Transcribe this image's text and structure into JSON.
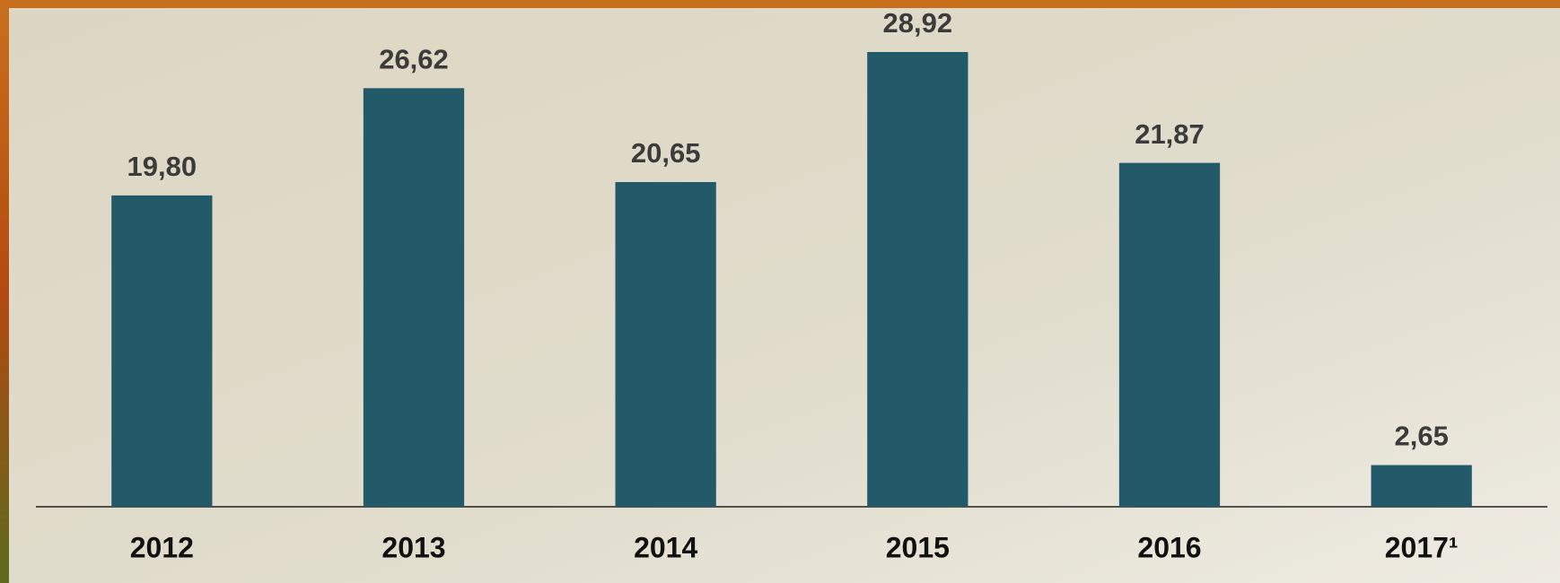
{
  "chart_data": {
    "type": "bar",
    "categories": [
      "2012",
      "2013",
      "2014",
      "2015",
      "2016",
      "2017¹"
    ],
    "values": [
      19.8,
      26.62,
      20.65,
      28.92,
      21.87,
      2.65
    ],
    "value_labels": [
      "19,80",
      "26,62",
      "20,65",
      "28,92",
      "21,87",
      "2,65"
    ],
    "color": "#235a69"
  }
}
